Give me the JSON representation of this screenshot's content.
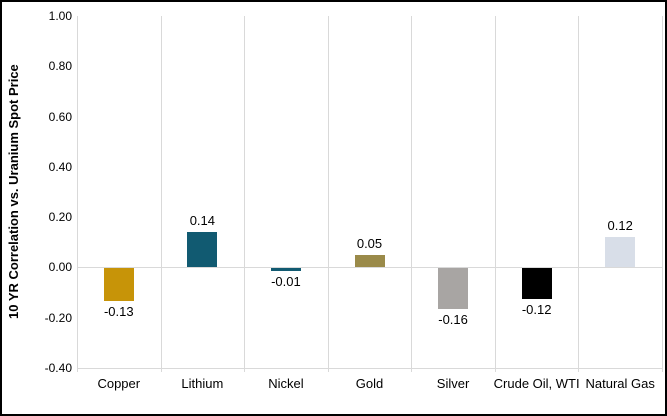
{
  "chart_data": {
    "type": "bar",
    "title": "",
    "xlabel": "",
    "ylabel": "10 YR Correlation vs. Uranium Spot Price",
    "categories": [
      "Copper",
      "Lithium",
      "Nickel",
      "Gold",
      "Silver",
      "Crude Oil, WTI",
      "Natural Gas"
    ],
    "values": [
      -0.13,
      0.14,
      -0.01,
      0.05,
      -0.16,
      -0.12,
      0.12
    ],
    "data_labels": [
      "-0.13",
      "0.14",
      "-0.01",
      "0.05",
      "-0.16",
      "-0.12",
      "0.12"
    ],
    "bar_colors": [
      "#C79408",
      "#115A71",
      "#115A71",
      "#9A8A49",
      "#A8A5A3",
      "#000000",
      "#D8DEE8"
    ],
    "ylim": [
      -0.4,
      1.0
    ],
    "ytick_step": 0.2,
    "ytick_labels": [
      "1.00",
      "0.80",
      "0.60",
      "0.40",
      "0.20",
      "0.00",
      "-0.20",
      "-0.40"
    ],
    "grid": {
      "vertical_category_separators": true,
      "zero_line": true,
      "bottom_axis_line": true,
      "color": "#D9D9D9"
    },
    "legend": "none",
    "background": "#FFFFFF",
    "border_color": "#000000"
  }
}
